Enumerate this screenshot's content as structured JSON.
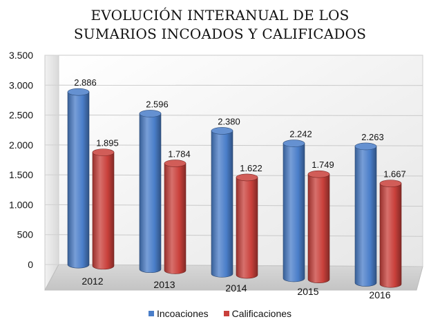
{
  "chart_data": {
    "type": "bar",
    "title_lines": [
      "EVOLUCIÓN INTERANUAL DE LOS",
      "SUMARIOS INCOADOS Y CALIFICADOS"
    ],
    "categories": [
      "2012",
      "2013",
      "2014",
      "2015",
      "2016"
    ],
    "series": [
      {
        "name": "Incoaciones",
        "values": [
          2886,
          2596,
          2380,
          2242,
          2263
        ],
        "labels": [
          "2.886",
          "2.596",
          "2.380",
          "2.242",
          "2.263"
        ],
        "color": "#4A7EC9"
      },
      {
        "name": "Calificaciones",
        "values": [
          1895,
          1784,
          1622,
          1749,
          1667
        ],
        "labels": [
          "1.895",
          "1.784",
          "1.622",
          "1.749",
          "1.667"
        ],
        "color": "#C9403B"
      }
    ],
    "ylim": [
      0,
      3500
    ],
    "yticks": [
      0,
      500,
      1000,
      1500,
      2000,
      2500,
      3000,
      3500
    ],
    "ytick_labels": [
      "0",
      "500",
      "1.000",
      "1.500",
      "2.000",
      "2.500",
      "3.000",
      "3.500"
    ],
    "grid": true,
    "legend_position": "bottom",
    "style": "3d-cylinder"
  }
}
